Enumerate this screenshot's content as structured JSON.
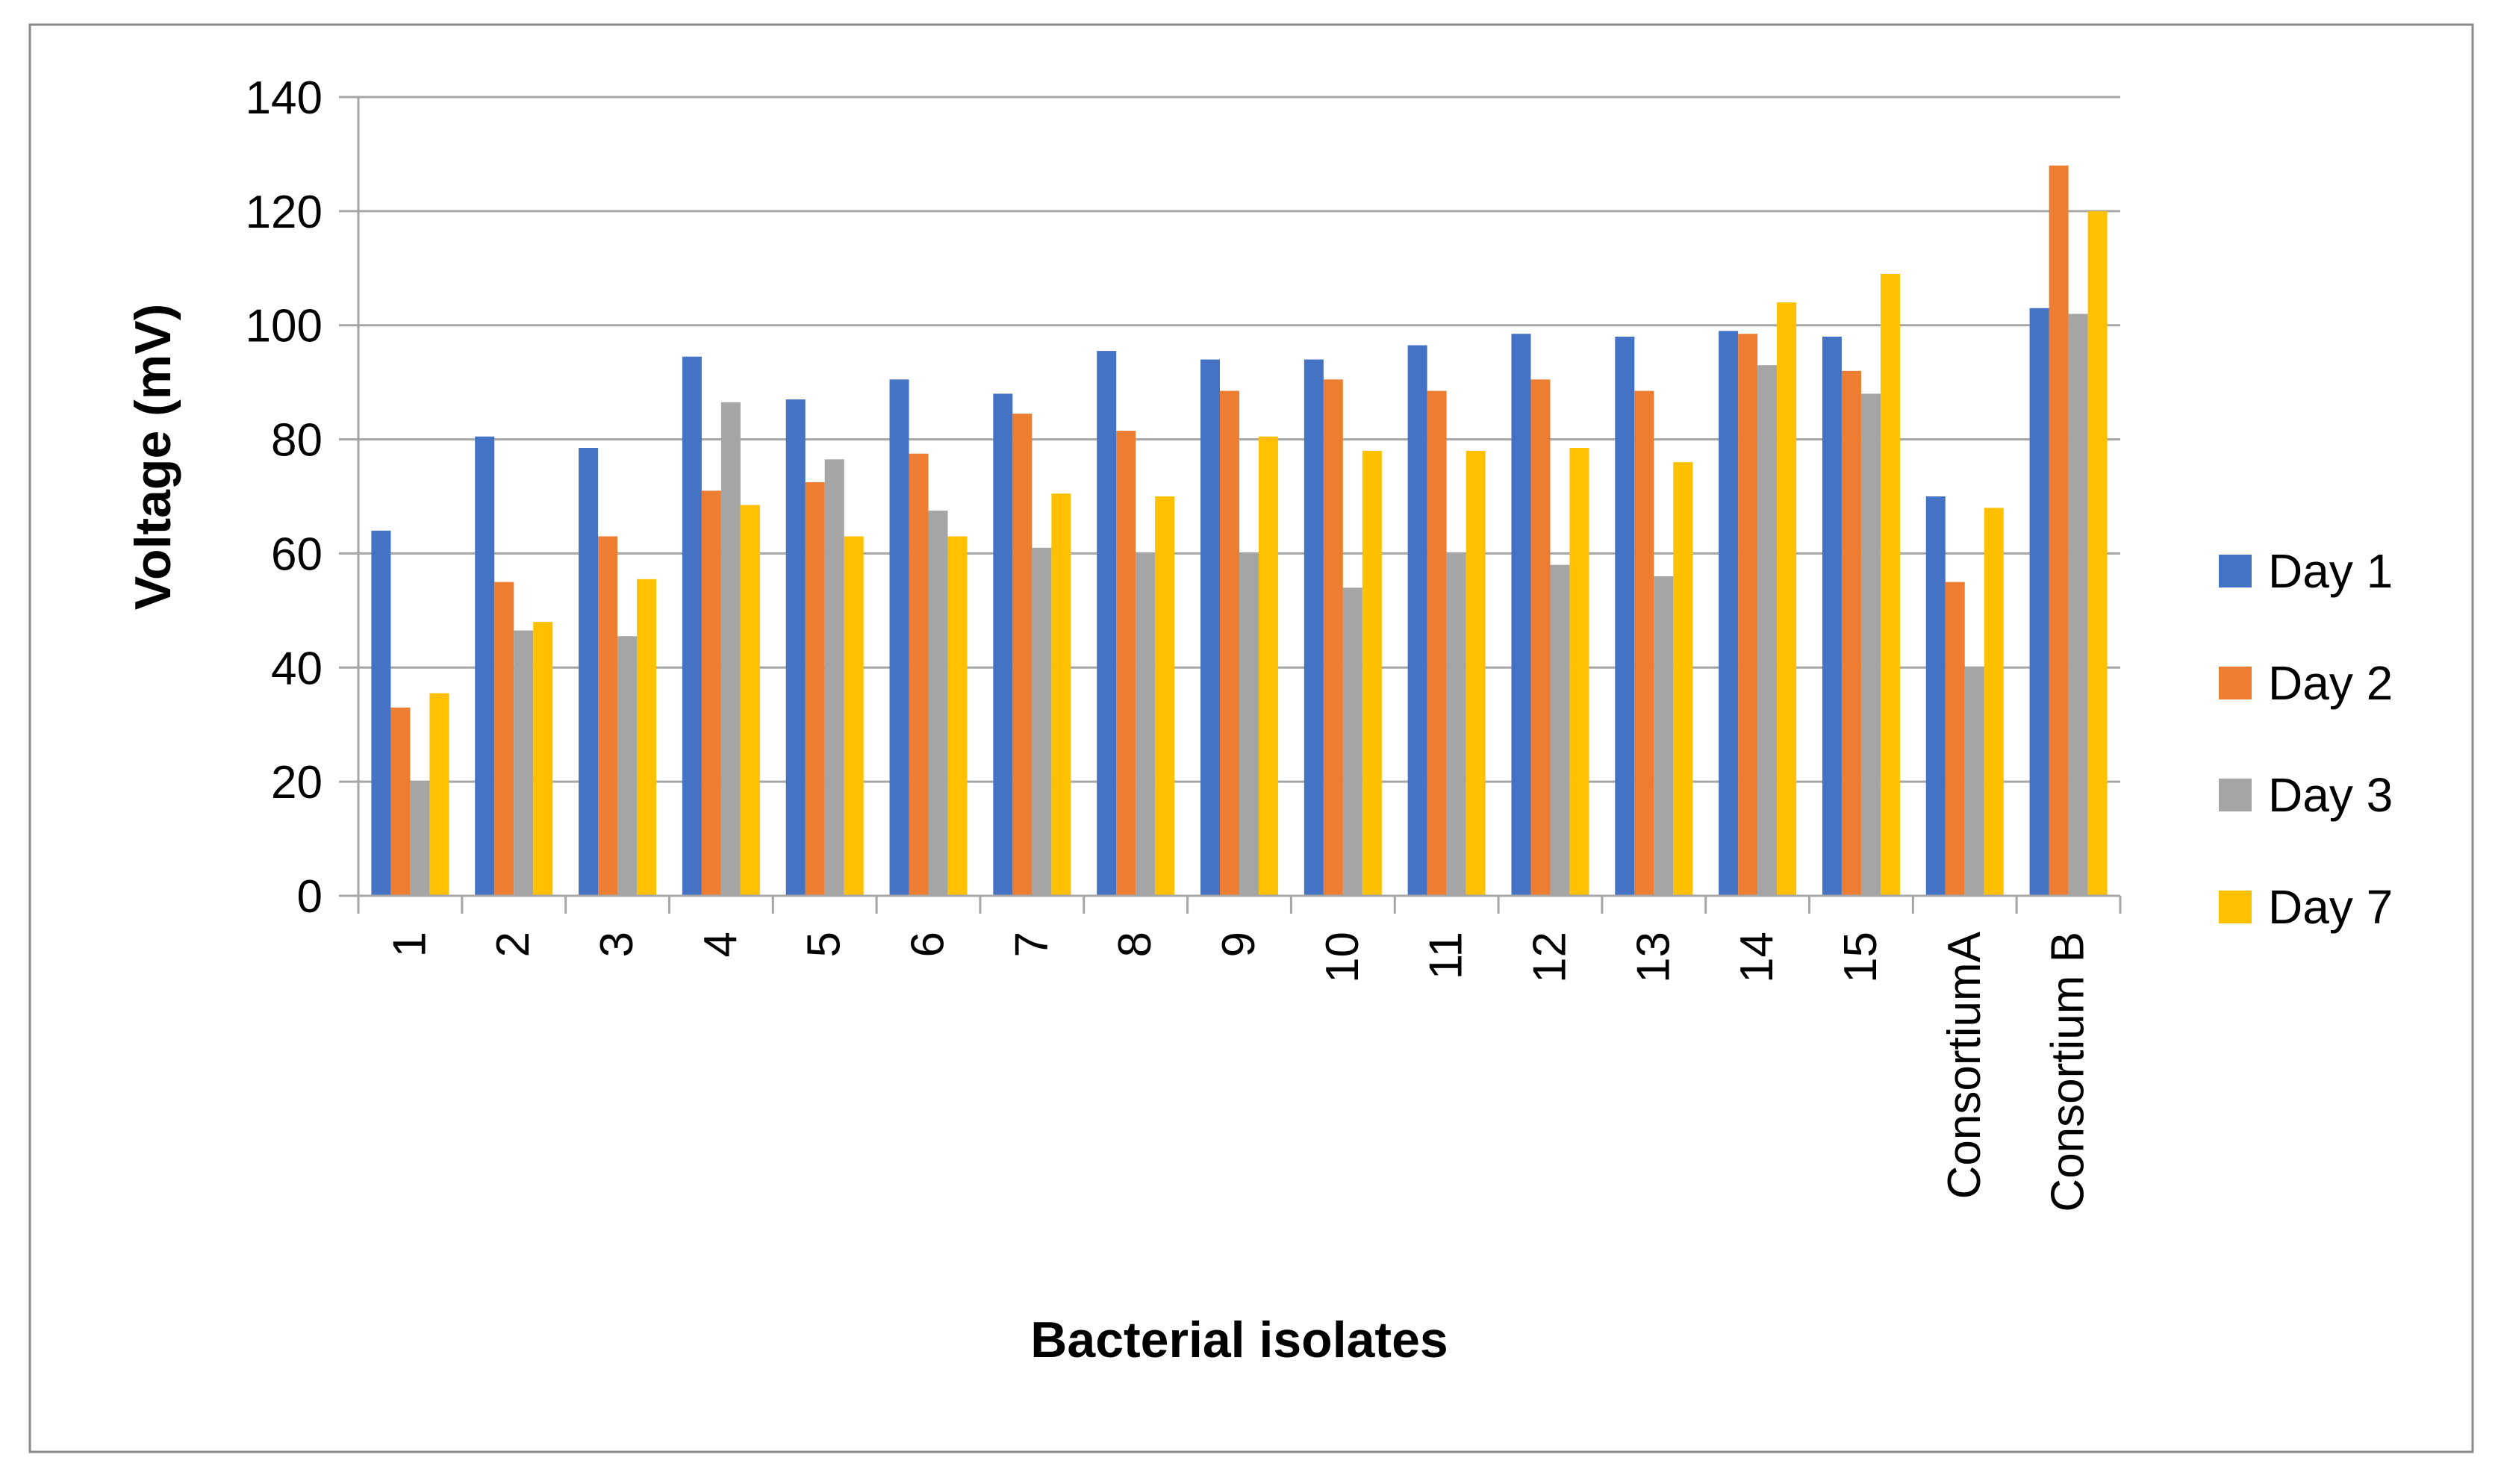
{
  "chart_data": {
    "type": "bar",
    "title": "",
    "xlabel": "Bacterial isolates",
    "ylabel": "Voltage (mV)",
    "ylim": [
      0,
      140
    ],
    "yticks": [
      0,
      20,
      40,
      60,
      80,
      100,
      120,
      140
    ],
    "grid": true,
    "legend_position": "right",
    "categories": [
      "1",
      "2",
      "3",
      "4",
      "5",
      "6",
      "7",
      "8",
      "9",
      "10",
      "11",
      "12",
      "13",
      "14",
      "15",
      "ConsortiumA",
      "Consortium B"
    ],
    "series": [
      {
        "name": "Day 1",
        "color": "#4472C4",
        "values": [
          64,
          80.5,
          78.5,
          94.5,
          87,
          90.5,
          88,
          95.5,
          94,
          94,
          96.5,
          98.5,
          98,
          99,
          98,
          70,
          103
        ]
      },
      {
        "name": "Day 2",
        "color": "#ED7D31",
        "values": [
          33,
          55,
          63,
          71,
          72.5,
          77.5,
          84.5,
          81.5,
          88.5,
          90.5,
          88.5,
          90.5,
          88.5,
          98.5,
          92,
          55,
          128
        ]
      },
      {
        "name": "Day 3",
        "color": "#A5A5A5",
        "values": [
          20,
          46.5,
          45.5,
          86.5,
          76.5,
          67.5,
          61,
          60,
          60,
          54,
          60,
          58,
          56,
          93,
          88,
          40,
          102
        ]
      },
      {
        "name": "Day 7",
        "color": "#FFC000",
        "values": [
          35.5,
          48,
          55.5,
          68.5,
          63,
          63,
          70.5,
          70,
          80.5,
          78,
          78,
          78.5,
          76,
          104,
          109,
          68,
          120
        ]
      }
    ]
  }
}
